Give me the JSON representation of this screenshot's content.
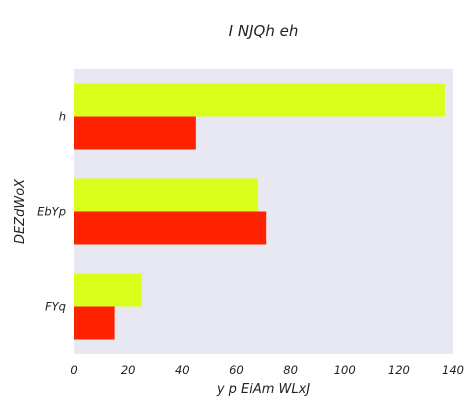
{
  "chart_data": {
    "type": "bar",
    "orientation": "horizontal",
    "title": "I NJQh  eh",
    "xlabel": "y p EiAm  WLxJ",
    "ylabel": "DEZdWoX",
    "categories": [
      "h",
      "EbYp",
      "FYq"
    ],
    "series": [
      {
        "color": "#d9ff1a",
        "values": [
          137,
          68,
          25
        ]
      },
      {
        "color": "#ff2200",
        "values": [
          45,
          71,
          15
        ]
      }
    ],
    "xlim": [
      0,
      140
    ],
    "xticks": [
      "0",
      "20",
      "40",
      "60",
      "80",
      "100",
      "120",
      "140"
    ],
    "grid": false,
    "background": "#e8e8f2"
  }
}
